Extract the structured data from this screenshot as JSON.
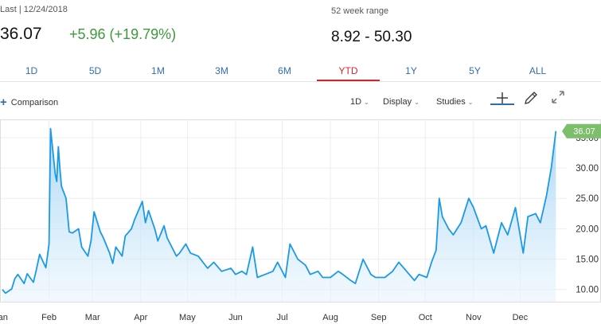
{
  "header": {
    "last_label": "Last | 12/24/2018",
    "price": "36.07",
    "change": "+5.96 (+19.79%)",
    "range_label": "52 week range",
    "range_value": "8.92 - 50.30"
  },
  "tabs": [
    {
      "label": "1D"
    },
    {
      "label": "5D"
    },
    {
      "label": "1M"
    },
    {
      "label": "3M"
    },
    {
      "label": "6M"
    },
    {
      "label": "YTD",
      "active": true
    },
    {
      "label": "1Y"
    },
    {
      "label": "5Y"
    },
    {
      "label": "ALL"
    }
  ],
  "toolbar": {
    "comparison_label": "Comparison",
    "interval_label": "1D",
    "display_label": "Display",
    "studies_label": "Studies",
    "icons": [
      "plus-icon",
      "chevron-down-icon",
      "crosshair-icon",
      "pencil-icon",
      "expand-icon"
    ]
  },
  "colors": {
    "line": "#1a9ae6",
    "area_fill": "#d6ecfb",
    "active_tab": "#d8242b",
    "tab": "#2f6db3",
    "positive": "#3c9a3c",
    "last_price_marker": "#7dbe6d"
  },
  "chart_data": {
    "type": "area",
    "x_ticks": [
      "Jan",
      "Feb",
      "Mar",
      "Apr",
      "May",
      "Jun",
      "Jul",
      "Aug",
      "Sep",
      "Oct",
      "Nov",
      "Dec"
    ],
    "y_ticks": [
      "10.00",
      "15.00",
      "20.00",
      "25.00",
      "30.00",
      "35.00"
    ],
    "ylim": [
      8,
      38
    ],
    "last_value_label": "36.07",
    "grid": true,
    "series": [
      {
        "x": [
          "2018-01-02",
          "2018-01-04",
          "2018-01-08",
          "2018-01-10",
          "2018-01-12",
          "2018-01-16",
          "2018-01-18",
          "2018-01-22",
          "2018-01-24",
          "2018-01-26",
          "2018-01-30",
          "2018-02-01",
          "2018-02-02",
          "2018-02-05",
          "2018-02-06",
          "2018-02-07",
          "2018-02-08",
          "2018-02-09",
          "2018-02-12",
          "2018-02-14",
          "2018-02-16",
          "2018-02-20",
          "2018-02-22",
          "2018-02-26",
          "2018-02-28",
          "2018-03-02",
          "2018-03-06",
          "2018-03-08",
          "2018-03-12",
          "2018-03-14",
          "2018-03-16",
          "2018-03-20",
          "2018-03-22",
          "2018-03-26",
          "2018-03-28",
          "2018-04-02",
          "2018-04-04",
          "2018-04-06",
          "2018-04-10",
          "2018-04-12",
          "2018-04-16",
          "2018-04-18",
          "2018-04-20",
          "2018-04-24",
          "2018-04-26",
          "2018-04-30",
          "2018-05-03",
          "2018-05-08",
          "2018-05-14",
          "2018-05-18",
          "2018-05-23",
          "2018-05-29",
          "2018-06-01",
          "2018-06-05",
          "2018-06-08",
          "2018-06-12",
          "2018-06-15",
          "2018-06-20",
          "2018-06-25",
          "2018-06-28",
          "2018-07-03",
          "2018-07-06",
          "2018-07-11",
          "2018-07-16",
          "2018-07-19",
          "2018-07-24",
          "2018-07-27",
          "2018-08-01",
          "2018-08-06",
          "2018-08-09",
          "2018-08-14",
          "2018-08-17",
          "2018-08-22",
          "2018-08-27",
          "2018-08-30",
          "2018-09-05",
          "2018-09-10",
          "2018-09-14",
          "2018-09-19",
          "2018-09-24",
          "2018-09-27",
          "2018-10-02",
          "2018-10-05",
          "2018-10-08",
          "2018-10-10",
          "2018-10-12",
          "2018-10-16",
          "2018-10-19",
          "2018-10-24",
          "2018-10-29",
          "2018-11-01",
          "2018-11-06",
          "2018-11-09",
          "2018-11-14",
          "2018-11-19",
          "2018-11-23",
          "2018-11-28",
          "2018-12-03",
          "2018-12-06",
          "2018-12-11",
          "2018-12-14",
          "2018-12-18",
          "2018-12-20",
          "2018-12-21",
          "2018-12-24"
        ],
        "y": [
          10.0,
          9.4,
          10.1,
          11.8,
          12.5,
          11.0,
          12.6,
          11.2,
          13.4,
          15.8,
          13.6,
          17.5,
          36.5,
          29.0,
          27.8,
          33.5,
          30.0,
          27.0,
          25.0,
          19.5,
          19.3,
          20.0,
          17.0,
          15.5,
          18.0,
          22.8,
          19.5,
          18.5,
          16.0,
          14.3,
          17.0,
          15.5,
          18.8,
          20.0,
          21.5,
          24.5,
          21.0,
          23.0,
          20.0,
          18.0,
          20.5,
          18.5,
          17.5,
          15.5,
          16.0,
          17.5,
          16.0,
          15.5,
          13.5,
          14.5,
          13.0,
          13.5,
          12.5,
          13.0,
          12.5,
          17.0,
          12.0,
          12.5,
          13.0,
          14.5,
          12.0,
          17.5,
          15.0,
          14.0,
          12.5,
          13.0,
          12.0,
          12.0,
          13.0,
          12.5,
          11.5,
          11.0,
          15.0,
          12.5,
          12.0,
          12.0,
          13.0,
          14.5,
          13.0,
          11.5,
          12.5,
          12.0,
          14.5,
          16.5,
          25.0,
          22.0,
          20.0,
          19.0,
          21.0,
          25.0,
          23.5,
          20.0,
          20.5,
          16.0,
          21.0,
          19.0,
          23.5,
          16.0,
          22.0,
          22.5,
          21.0,
          25.5,
          28.5,
          30.0,
          36.07
        ]
      }
    ]
  }
}
